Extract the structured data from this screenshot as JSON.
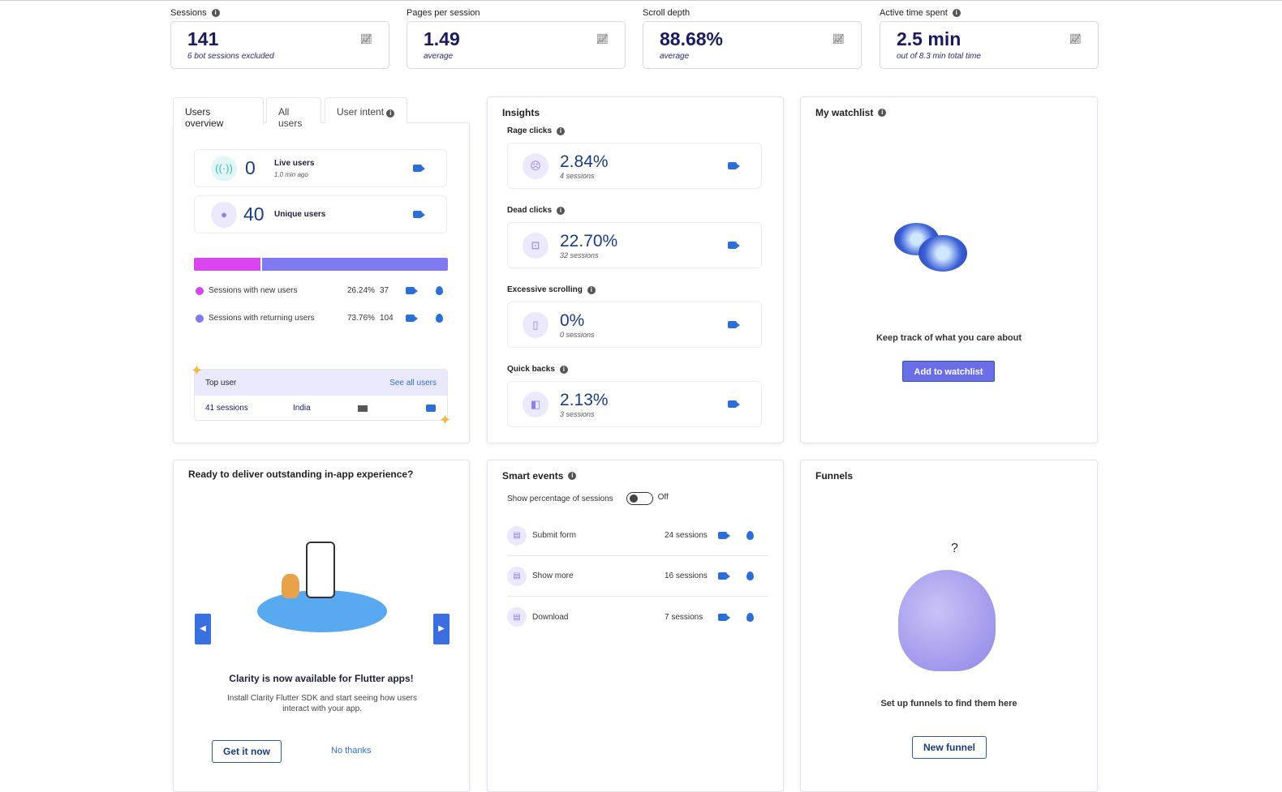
{
  "kpis": [
    {
      "label": "Sessions",
      "info": true,
      "value": "141",
      "sub": "6 bot sessions excluded"
    },
    {
      "label": "Pages per session",
      "info": false,
      "value": "1.49",
      "sub": "average"
    },
    {
      "label": "Scroll depth",
      "info": false,
      "value": "88.68%",
      "sub": "average"
    },
    {
      "label": "Active time spent",
      "info": true,
      "value": "2.5 min",
      "sub": "out of 8.3 min total time"
    }
  ],
  "users": {
    "tabs": [
      "Users overview",
      "All users",
      "User intent"
    ],
    "live": {
      "value": "0",
      "label": "Live users",
      "sub": "1.0 min ago"
    },
    "unique": {
      "value": "40",
      "label": "Unique users"
    },
    "split": {
      "new_pct": 26.24,
      "colors": {
        "new": "#d946ef",
        "returning": "#7f7af0"
      }
    },
    "rows": [
      {
        "label": "Sessions with new users",
        "pct": "26.24%",
        "count": "37"
      },
      {
        "label": "Sessions with returning users",
        "pct": "73.76%",
        "count": "104"
      }
    ],
    "top_user": {
      "title": "Top user",
      "link": "See all users",
      "sessions": "41 sessions",
      "country": "India"
    }
  },
  "insights": {
    "title": "Insights",
    "items": [
      {
        "label": "Rage clicks",
        "value": "2.84%",
        "sub": "4 sessions",
        "icon": "☹"
      },
      {
        "label": "Dead clicks",
        "value": "22.70%",
        "sub": "32 sessions",
        "icon": "⊡"
      },
      {
        "label": "Excessive scrolling",
        "value": "0%",
        "sub": "0 sessions",
        "icon": "▯"
      },
      {
        "label": "Quick backs",
        "value": "2.13%",
        "sub": "3 sessions",
        "icon": "◧"
      }
    ]
  },
  "watchlist": {
    "title": "My watchlist",
    "text": "Keep track of what you care about",
    "button": "Add to watchlist"
  },
  "promo": {
    "title": "Ready to deliver outstanding in-app experience?",
    "headline": "Clarity is now available for Flutter apps!",
    "body": "Install Clarity Flutter SDK and start seeing how users interact with your app.",
    "primary": "Get it now",
    "secondary": "No thanks"
  },
  "smart": {
    "title": "Smart events",
    "toggle_label": "Show percentage of sessions",
    "toggle_state": "Off",
    "items": [
      {
        "label": "Submit form",
        "sessions": "24 sessions"
      },
      {
        "label": "Show more",
        "sessions": "16 sessions"
      },
      {
        "label": "Download",
        "sessions": "7 sessions"
      }
    ]
  },
  "funnels": {
    "title": "Funnels",
    "question": "?",
    "text": "Set up funnels to find them here",
    "button": "New funnel"
  }
}
